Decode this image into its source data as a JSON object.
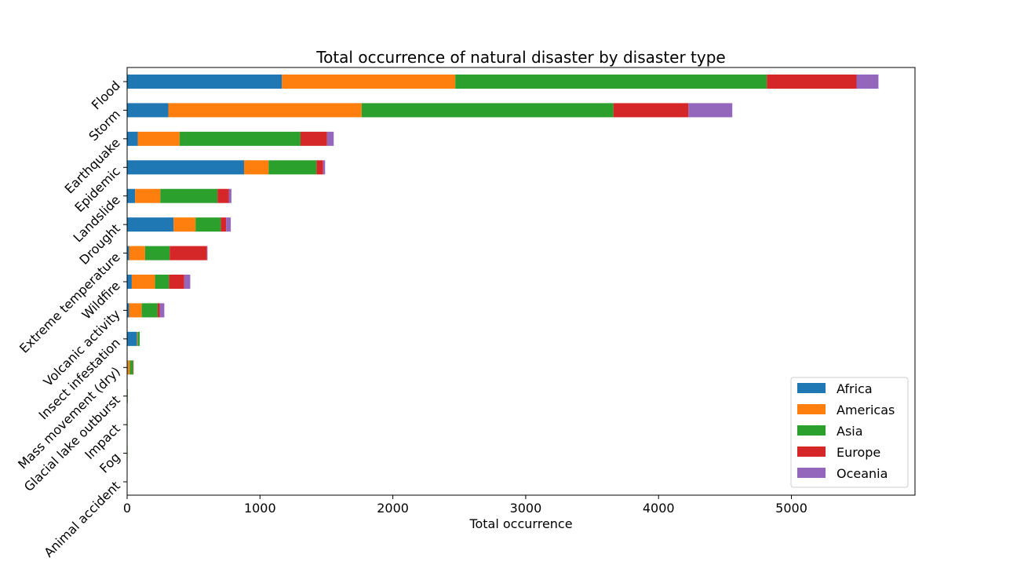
{
  "chart_data": {
    "type": "bar",
    "orientation": "horizontal",
    "stacked": true,
    "title": "Total occurrence of natural disaster by disaster type",
    "xlabel": "Total occurrence",
    "ylabel": "",
    "xlim": [
      0,
      5930
    ],
    "xticks": [
      0,
      1000,
      2000,
      3000,
      4000,
      5000
    ],
    "grid": false,
    "legend_position": "lower-right",
    "categories": [
      "Flood",
      "Storm",
      "Earthquake",
      "Epidemic",
      "Landslide",
      "Drought",
      "Extreme temperature",
      "Wildfire",
      "Volcanic activity",
      "Insect infestation",
      "Mass movement (dry)",
      "Glacial lake outburst",
      "Impact",
      "Fog",
      "Animal accident"
    ],
    "series": [
      {
        "name": "Africa",
        "color": "#1f77b4",
        "values": [
          1165,
          310,
          80,
          880,
          60,
          350,
          15,
          35,
          15,
          75,
          5,
          0,
          0,
          0,
          0
        ]
      },
      {
        "name": "Americas",
        "color": "#ff7f0e",
        "values": [
          1305,
          1455,
          315,
          185,
          190,
          165,
          120,
          175,
          95,
          5,
          15,
          1,
          0,
          0,
          0
        ]
      },
      {
        "name": "Asia",
        "color": "#2ca02c",
        "values": [
          2345,
          1895,
          910,
          360,
          430,
          190,
          185,
          105,
          120,
          15,
          25,
          1,
          1,
          1,
          0
        ]
      },
      {
        "name": "Europe",
        "color": "#d62728",
        "values": [
          675,
          565,
          200,
          50,
          85,
          40,
          280,
          115,
          15,
          0,
          1,
          0,
          0,
          0,
          0
        ]
      },
      {
        "name": "Oceania",
        "color": "#9467bd",
        "values": [
          165,
          330,
          50,
          15,
          20,
          35,
          5,
          45,
          35,
          0,
          0,
          0,
          0,
          0,
          0
        ]
      }
    ]
  }
}
